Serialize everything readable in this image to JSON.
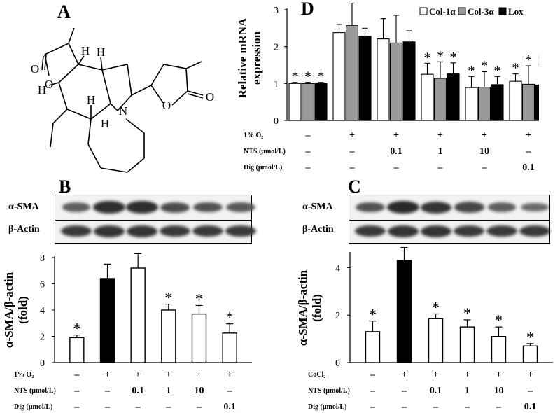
{
  "panels": {
    "A": "A",
    "B": "B",
    "C": "C",
    "D": "D"
  },
  "structure": {
    "atom_labels": [
      "O",
      "O",
      "H",
      "H",
      "H",
      "H",
      "N",
      "H",
      "O",
      "O"
    ]
  },
  "blots": {
    "B": {
      "rows": [
        "α-SMA",
        "β-Actin"
      ],
      "intensity_a": [
        0.55,
        0.95,
        0.95,
        0.7,
        0.65,
        0.6
      ],
      "intensity_b": [
        0.85,
        0.9,
        0.9,
        0.85,
        0.85,
        0.85
      ]
    },
    "C": {
      "rows": [
        "α-SMA",
        "β-Actin"
      ],
      "intensity_a": [
        0.65,
        1.0,
        0.9,
        0.75,
        0.55,
        0.45
      ],
      "intensity_b": [
        0.85,
        0.9,
        0.9,
        0.85,
        0.85,
        0.85
      ]
    }
  },
  "chart_data": [
    {
      "id": "D",
      "type": "bar",
      "ylabel": "Relative mRNA expression",
      "ylabel_lines": [
        "Relative mRNA",
        "expression"
      ],
      "ylim": [
        0,
        3
      ],
      "yticks": [
        "0",
        "1",
        "2",
        "3"
      ],
      "legend": {
        "position": "top-right",
        "entries": [
          "Col-1α",
          "Col-3α",
          "Lox"
        ]
      },
      "series": [
        {
          "name": "Col-1α",
          "color": "#ffffff",
          "values": [
            1.0,
            2.38,
            2.21,
            1.25,
            0.89,
            1.06
          ],
          "errors": [
            0.03,
            0.22,
            0.55,
            0.3,
            0.3,
            0.2
          ],
          "star": [
            true,
            false,
            false,
            true,
            true,
            true
          ]
        },
        {
          "name": "Col-3α",
          "color": "#999999",
          "values": [
            1.0,
            2.58,
            2.1,
            1.14,
            0.9,
            0.98
          ],
          "errors": [
            0.03,
            0.6,
            0.75,
            0.45,
            0.42,
            0.5
          ],
          "star": [
            true,
            false,
            false,
            true,
            true,
            true
          ]
        },
        {
          "name": "Lox",
          "color": "#000000",
          "values": [
            1.0,
            2.28,
            2.13,
            1.26,
            0.97,
            0.96
          ],
          "errors": [
            0.03,
            0.22,
            0.3,
            0.3,
            0.22,
            0.55
          ],
          "star": [
            true,
            false,
            false,
            true,
            true,
            true
          ]
        }
      ],
      "conditions": [
        {
          "label": "1% O₂",
          "values": [
            "–",
            "+",
            "+",
            "+",
            "+",
            "+"
          ]
        },
        {
          "label": "NTS (μmol/L)",
          "values": [
            "–",
            "–",
            "0.1",
            "1",
            "10",
            "–"
          ]
        },
        {
          "label": "Dig   (μmol/L)",
          "values": [
            "–",
            "–",
            "–",
            "–",
            "–",
            "0.1"
          ]
        }
      ]
    },
    {
      "id": "B",
      "type": "bar",
      "ylabel": "α-SMA/β-actin (fold)",
      "ylabel_lines": [
        "α-SMA/β-actin",
        "(fold)"
      ],
      "ylim": [
        0,
        8
      ],
      "yticks": [
        "0",
        "2",
        "4",
        "6",
        "8"
      ],
      "values": [
        1.9,
        6.4,
        7.2,
        4.0,
        3.7,
        2.25
      ],
      "errors": [
        0.2,
        1.1,
        1.1,
        0.45,
        0.65,
        0.7
      ],
      "fill": [
        "white",
        "black",
        "white",
        "white",
        "white",
        "white"
      ],
      "star": [
        true,
        false,
        false,
        true,
        true,
        true
      ],
      "conditions": [
        {
          "label": "1% O₂",
          "values": [
            "–",
            "+",
            "+",
            "+",
            "+",
            "+"
          ]
        },
        {
          "label": "NTS (μmol/L)",
          "values": [
            "–",
            "–",
            "0.1",
            "1",
            "10",
            "–"
          ]
        },
        {
          "label": "Dig   (μmol/L)",
          "values": [
            "–",
            "–",
            "–",
            "–",
            "–",
            "0.1"
          ]
        }
      ]
    },
    {
      "id": "C",
      "type": "bar",
      "ylabel": "α-SMA/β-actin (fold)",
      "ylabel_lines": [
        "α-SMA/β-actin",
        "(fold)"
      ],
      "ylim": [
        0,
        4.6
      ],
      "yticks": [
        "0",
        "2",
        "4"
      ],
      "ytick_values": [
        0,
        2,
        4
      ],
      "values": [
        1.3,
        4.3,
        1.85,
        1.5,
        1.1,
        0.7
      ],
      "errors": [
        0.45,
        0.55,
        0.2,
        0.3,
        0.4,
        0.1
      ],
      "fill": [
        "white",
        "black",
        "white",
        "white",
        "white",
        "white"
      ],
      "star": [
        true,
        false,
        true,
        true,
        true,
        true
      ],
      "conditions": [
        {
          "label": "CoCl₂",
          "values": [
            "–",
            "+",
            "+",
            "+",
            "+",
            "+"
          ]
        },
        {
          "label": "NTS (μmol/L)",
          "values": [
            "–",
            "–",
            "0.1",
            "1",
            "10",
            "–"
          ]
        },
        {
          "label": "Dig   (μmol/L)",
          "values": [
            "–",
            "–",
            "–",
            "–",
            "–",
            "0.1"
          ]
        }
      ]
    }
  ]
}
